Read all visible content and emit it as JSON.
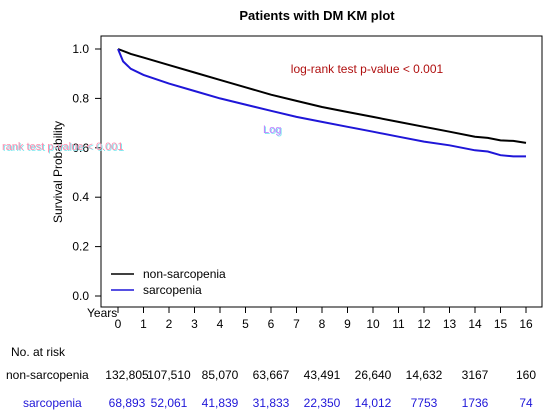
{
  "chart_data": {
    "type": "line",
    "title": "Patients with DM KM plot",
    "xlabel": "Years",
    "ylabel": "Survival Probability",
    "xlim": [
      0,
      16
    ],
    "ylim": [
      0,
      1
    ],
    "xticks": [
      0,
      1,
      2,
      3,
      4,
      5,
      6,
      7,
      8,
      9,
      10,
      11,
      12,
      13,
      14,
      15,
      16
    ],
    "yticks": [
      "0.0",
      "0.2",
      "0.4",
      "0.6",
      "0.8",
      "1.0"
    ],
    "grid": false,
    "legend_position": "bottom-left",
    "annotation": "log-rank test p-value < 0.001",
    "series": [
      {
        "name": "non-sarcopenia",
        "color": "#000000",
        "x": [
          0,
          0.5,
          1,
          2,
          3,
          4,
          5,
          6,
          7,
          8,
          9,
          10,
          11,
          12,
          13,
          14,
          14.5,
          15,
          15.5,
          16
        ],
        "y": [
          1.0,
          0.98,
          0.965,
          0.935,
          0.905,
          0.875,
          0.845,
          0.815,
          0.79,
          0.765,
          0.745,
          0.725,
          0.705,
          0.685,
          0.665,
          0.645,
          0.64,
          0.63,
          0.628,
          0.62
        ]
      },
      {
        "name": "sarcopenia",
        "color": "#1f16d8",
        "x": [
          0,
          0.2,
          0.5,
          1,
          2,
          3,
          4,
          5,
          6,
          7,
          8,
          9,
          10,
          11,
          12,
          13,
          14,
          14.5,
          15,
          15.5,
          16
        ],
        "y": [
          1.0,
          0.95,
          0.92,
          0.895,
          0.86,
          0.83,
          0.8,
          0.775,
          0.75,
          0.725,
          0.705,
          0.685,
          0.665,
          0.645,
          0.625,
          0.61,
          0.59,
          0.585,
          0.57,
          0.565,
          0.565
        ]
      }
    ],
    "risk_table": {
      "title": "No. at risk",
      "time_points": [
        0,
        2,
        4,
        6,
        8,
        10,
        12,
        14,
        16
      ],
      "rows": [
        {
          "label": "non-sarcopenia",
          "color": "#000000",
          "values": [
            "132,805",
            "107,510",
            "85,070",
            "63,667",
            "43,491",
            "26,640",
            "14,632",
            "3167",
            "160"
          ]
        },
        {
          "label": "sarcopenia",
          "color": "#1f16d8",
          "values": [
            "68,893",
            "52,061",
            "41,839",
            "31,833",
            "22,350",
            "14,012",
            "7753",
            "1736",
            "74"
          ]
        }
      ]
    }
  },
  "artifacts": {
    "left_ghost_text": "rank test p-value < 0.001",
    "center_ghost_text": "Log"
  }
}
